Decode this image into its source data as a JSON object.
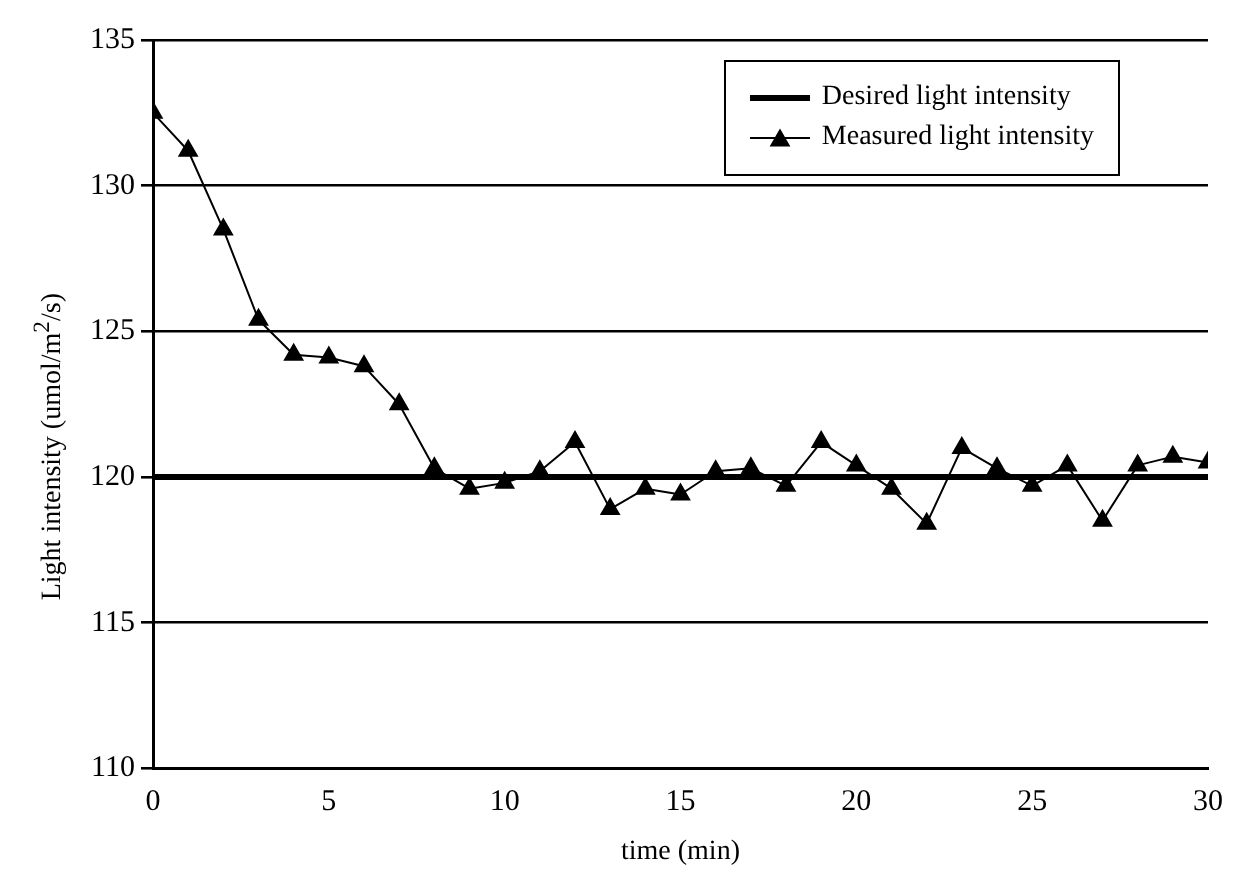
{
  "chart_data": {
    "type": "line",
    "xlabel": "time (min)",
    "ylabel": "Light intensity (umol/m$^{2}$/s)",
    "x": [
      0,
      1,
      2,
      3,
      4,
      5,
      6,
      7,
      8,
      9,
      10,
      11,
      12,
      13,
      14,
      15,
      16,
      17,
      18,
      19,
      20,
      21,
      22,
      23,
      24,
      25,
      26,
      27,
      28,
      29,
      30
    ],
    "series": [
      {
        "name": "Desired light intensity",
        "color": "#000000",
        "marker": "none",
        "values": [
          120,
          120,
          120,
          120,
          120,
          120,
          120,
          120,
          120,
          120,
          120,
          120,
          120,
          120,
          120,
          120,
          120,
          120,
          120,
          120,
          120,
          120,
          120,
          120,
          120,
          120,
          120,
          120,
          120,
          120,
          120
        ]
      },
      {
        "name": "Measured light intensity",
        "color": "#000000",
        "values": [
          132.5,
          131.2,
          128.5,
          125.4,
          124.2,
          124.1,
          123.8,
          122.5,
          120.3,
          119.6,
          119.8,
          120.2,
          121.2,
          118.9,
          119.6,
          119.4,
          120.2,
          120.3,
          119.7,
          121.2,
          120.4,
          119.6,
          118.4,
          121.0,
          120.3,
          119.7,
          120.4,
          118.5,
          120.4,
          120.7,
          120.5
        ]
      }
    ],
    "xlim": [
      0,
      30
    ],
    "xticks": [
      0,
      5,
      10,
      15,
      20,
      25,
      30
    ],
    "ylim": [
      110,
      135
    ],
    "yticks": [
      110,
      115,
      120,
      125,
      130,
      135
    ],
    "grid": "y",
    "legend": "top right",
    "marker": "triangle",
    "line_style": "solid"
  }
}
